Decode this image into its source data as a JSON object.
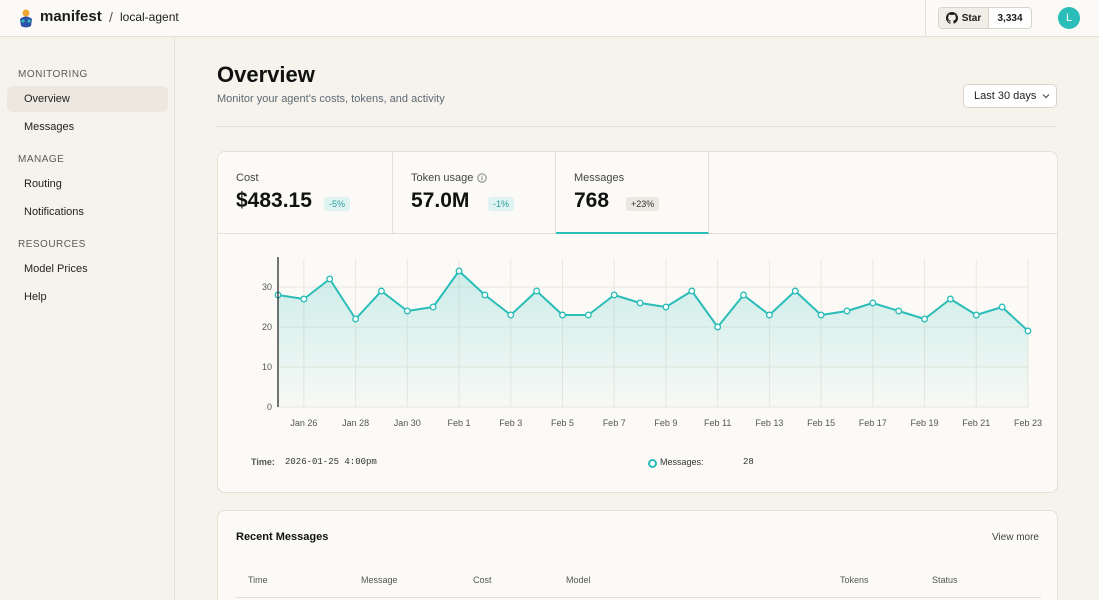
{
  "topbar": {
    "brand": "manifest",
    "separator": "/",
    "project": "local-agent",
    "star_label": "Star",
    "star_count": "3,334",
    "avatar_initial": "L"
  },
  "sidebar": {
    "sections": [
      {
        "heading": "MONITORING",
        "items": [
          {
            "label": "Overview",
            "active": true
          },
          {
            "label": "Messages",
            "active": false
          }
        ]
      },
      {
        "heading": "MANAGE",
        "items": [
          {
            "label": "Routing",
            "active": false
          },
          {
            "label": "Notifications",
            "active": false
          }
        ]
      },
      {
        "heading": "RESOURCES",
        "items": [
          {
            "label": "Model Prices",
            "active": false
          },
          {
            "label": "Help",
            "active": false
          }
        ]
      }
    ]
  },
  "page": {
    "title": "Overview",
    "subtitle": "Monitor your agent's costs, tokens, and activity",
    "range": "Last 30 days"
  },
  "metrics": [
    {
      "label": "Cost",
      "value": "$483.15",
      "change": "-5%",
      "info_icon": false,
      "active": false
    },
    {
      "label": "Token usage",
      "value": "57.0M",
      "change": "-1%",
      "info_icon": true,
      "active": false
    },
    {
      "label": "Messages",
      "value": "768",
      "change": "+23%",
      "info_icon": false,
      "active": true
    }
  ],
  "colors": {
    "accent": "#2bbdb8",
    "badge_teal_bg": "#dff4f2",
    "badge_gray_bg": "#ebe8e1"
  },
  "chart_data": {
    "type": "area",
    "series": [
      {
        "name": "Messages",
        "values": [
          28,
          27,
          32,
          22,
          29,
          24,
          25,
          34,
          28,
          23,
          29,
          23,
          23,
          28,
          26,
          25,
          29,
          20,
          28,
          23,
          29,
          23,
          24,
          26,
          24,
          22,
          27,
          23,
          25,
          19
        ]
      }
    ],
    "x": [
      "2026-01-25",
      "2026-01-26",
      "2026-01-27",
      "2026-01-28",
      "2026-01-29",
      "2026-01-30",
      "2026-01-31",
      "2026-02-01",
      "2026-02-02",
      "2026-02-03",
      "2026-02-04",
      "2026-02-05",
      "2026-02-06",
      "2026-02-07",
      "2026-02-08",
      "2026-02-09",
      "2026-02-10",
      "2026-02-11",
      "2026-02-12",
      "2026-02-13",
      "2026-02-14",
      "2026-02-15",
      "2026-02-16",
      "2026-02-17",
      "2026-02-18",
      "2026-02-19",
      "2026-02-20",
      "2026-02-21",
      "2026-02-22",
      "2026-02-23"
    ],
    "x_tick_labels": [
      "Jan 26",
      "Jan 28",
      "Jan 30",
      "Feb 1",
      "Feb 3",
      "Feb 5",
      "Feb 7",
      "Feb 9",
      "Feb 11",
      "Feb 13",
      "Feb 15",
      "Feb 17",
      "Feb 19",
      "Feb 21",
      "Feb 23"
    ],
    "y_ticks": [
      0,
      10,
      20,
      30
    ],
    "ylim": [
      0,
      37
    ],
    "grid": true,
    "cursor_index": 0
  },
  "readout": {
    "time_label": "Time:",
    "time_value": "2026-01-25 4:00pm",
    "series_label": "Messages:",
    "series_value": "28"
  },
  "recent": {
    "title": "Recent Messages",
    "view_more": "View more",
    "columns": [
      "Time",
      "Message",
      "Cost",
      "Model",
      "Tokens",
      "Status"
    ]
  }
}
